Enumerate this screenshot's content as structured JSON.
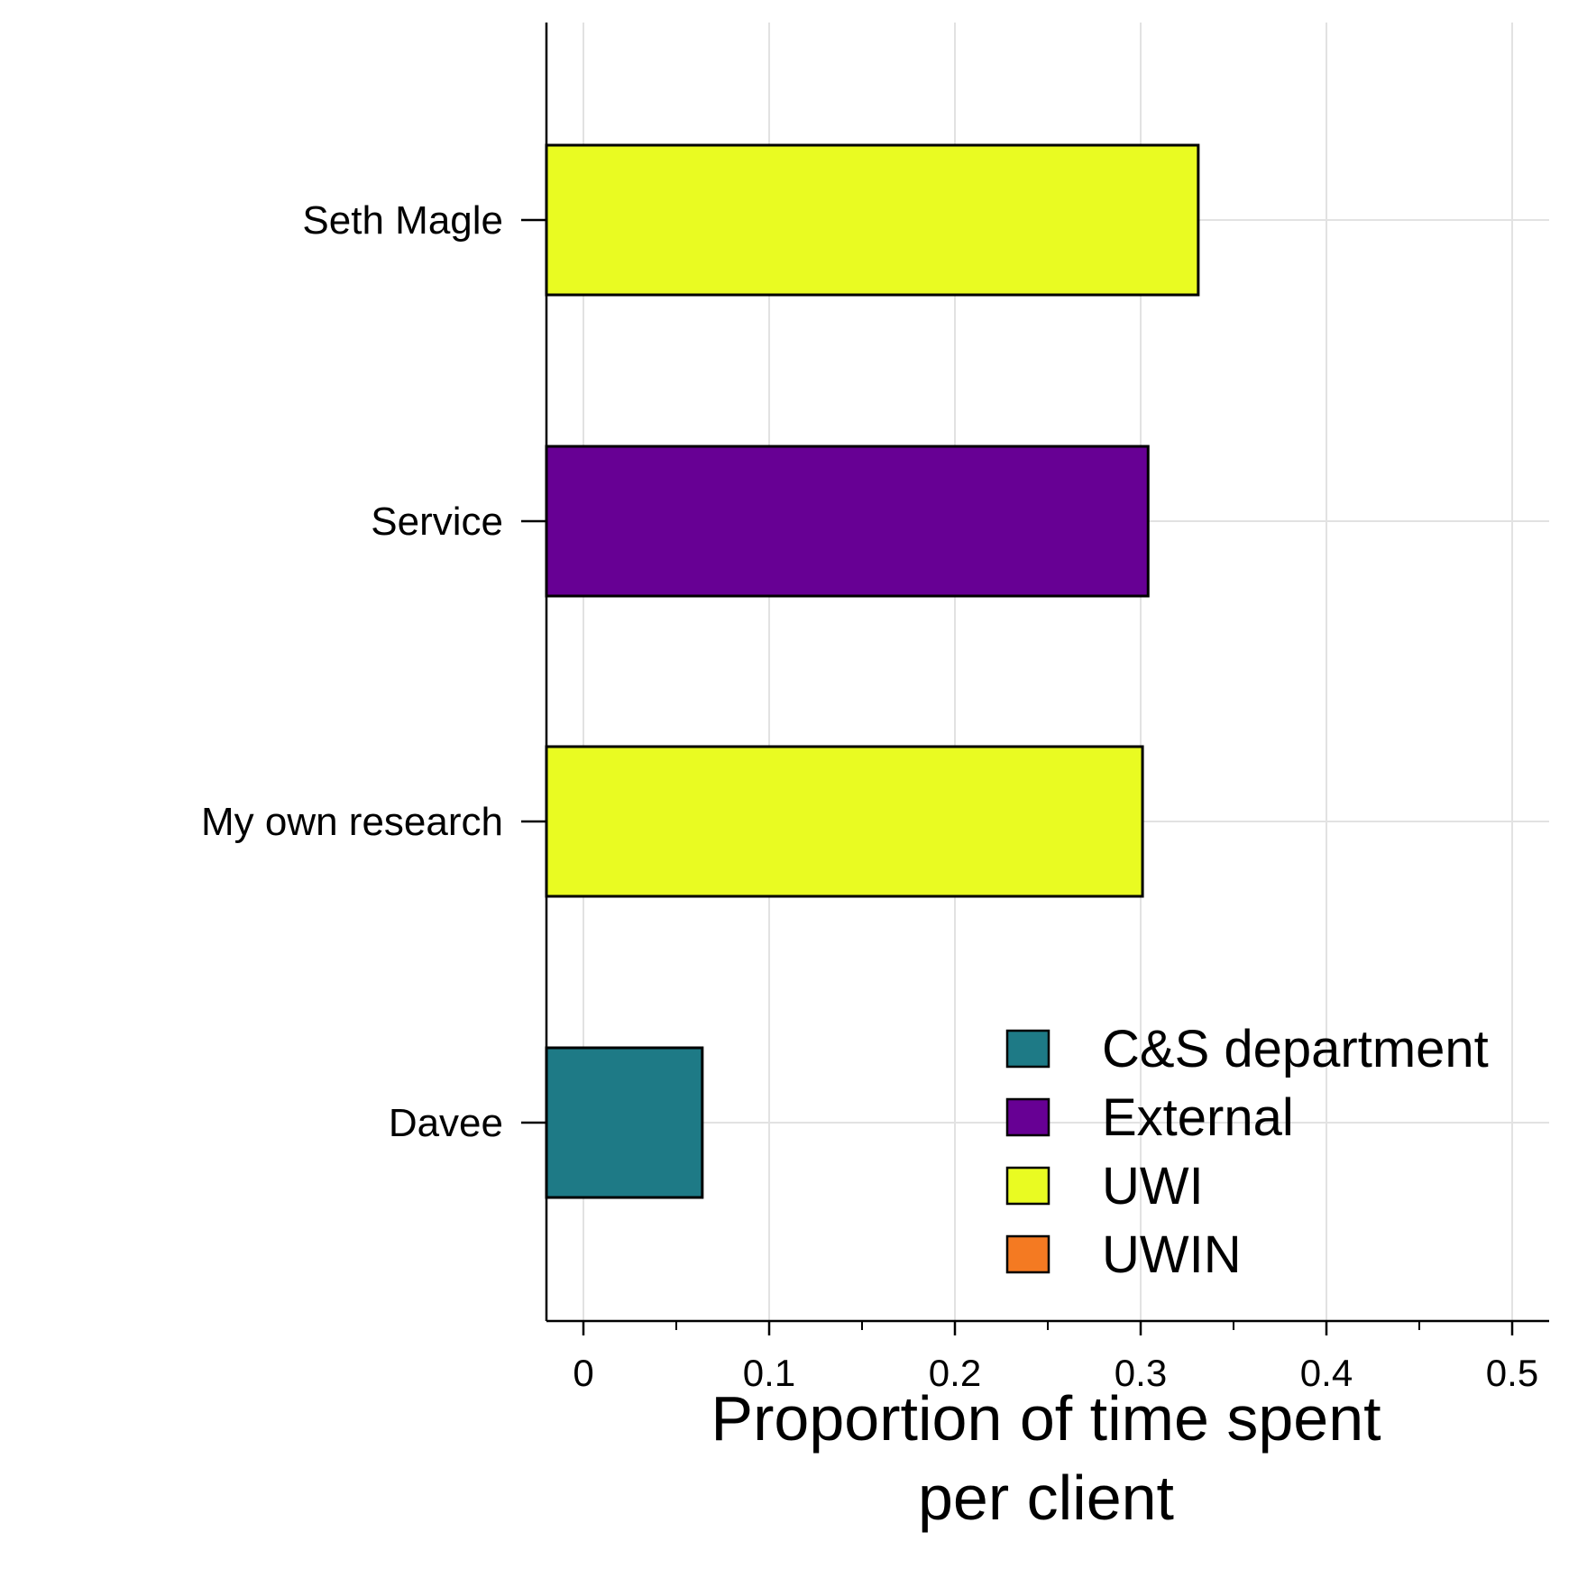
{
  "chart_data": {
    "type": "bar",
    "orientation": "horizontal",
    "categories": [
      "Seth Magle",
      "Service",
      "My own research",
      "Davee"
    ],
    "values": [
      0.331,
      0.304,
      0.301,
      0.064
    ],
    "groups": [
      "UWI",
      "External",
      "UWI",
      "C&S department"
    ],
    "xlabel_lines": [
      "Proportion of time spent",
      "per client"
    ],
    "ylabel": "",
    "xlim": [
      -0.02,
      0.52
    ],
    "xticks": [
      0,
      0.1,
      0.2,
      0.3,
      0.4,
      0.5
    ],
    "xtick_labels": [
      "0",
      "0.1",
      "0.2",
      "0.3",
      "0.4",
      "0.5"
    ],
    "minor_xticks": [
      0.05,
      0.15,
      0.25,
      0.35,
      0.45
    ],
    "grid": true,
    "legend": {
      "position": "bottom-right",
      "entries": [
        {
          "label": "C&S department",
          "color": "#1e7a86"
        },
        {
          "label": "External",
          "color": "#670094"
        },
        {
          "label": "UWI",
          "color": "#e9fb22"
        },
        {
          "label": "UWIN",
          "color": "#f47a22"
        }
      ]
    },
    "colors": {
      "grid": "#e2e2e2",
      "axis": "#000000",
      "bar_edge": "#000000"
    }
  }
}
